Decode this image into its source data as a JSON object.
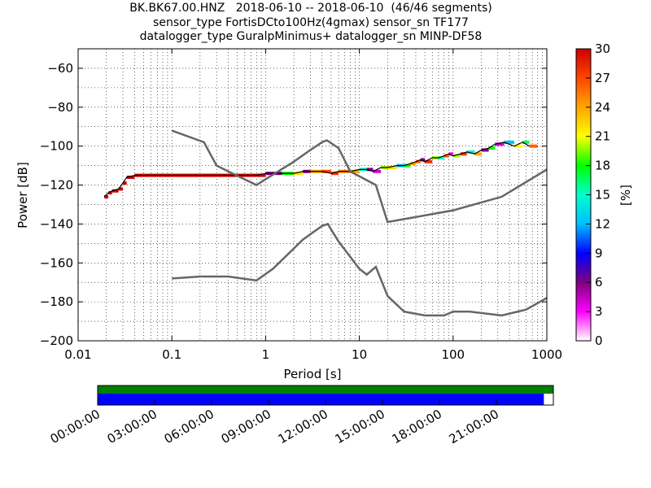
{
  "title_lines": [
    "BK.BK67.00.HNZ   2018-06-10 -- 2018-06-10  (46/46 segments)",
    "sensor_type FortisDCto100Hz(4gmax) sensor_sn TF177",
    "datalogger_type GuralpMinimus+ datalogger_sn MINP-DF58"
  ],
  "chart_data": [
    {
      "type": "heatmap",
      "title": "",
      "xlabel": "Period [s]",
      "ylabel": "Power [dB]",
      "xscale": "log",
      "xlim": [
        0.01,
        1000
      ],
      "ylim": [
        -200,
        -50
      ],
      "x_tick_labels": [
        "0.01",
        "0.1",
        "1",
        "10",
        "100",
        "1000"
      ],
      "y_ticks": [
        -60,
        -80,
        -100,
        -120,
        -140,
        -160,
        -180,
        -200
      ],
      "grid": "dotted",
      "colorbar": {
        "label": "[%]",
        "ticks": [
          0,
          3,
          6,
          9,
          12,
          15,
          18,
          21,
          24,
          27,
          30
        ],
        "range": [
          0,
          30
        ],
        "colors": [
          "#ffffff",
          "#ff00ff",
          "#800080",
          "#0000ff",
          "#00bfff",
          "#00ffcc",
          "#00ff00",
          "#ffff00",
          "#ffa500",
          "#ff4500",
          "#cc0000"
        ]
      },
      "ppsd_band": {
        "description_color": "percent occurrence",
        "points": [
          {
            "x": 0.019,
            "y": -126,
            "pct": 30
          },
          {
            "x": 0.021,
            "y": -124,
            "pct": 30
          },
          {
            "x": 0.023,
            "y": -123,
            "pct": 30
          },
          {
            "x": 0.027,
            "y": -122,
            "pct": 30
          },
          {
            "x": 0.03,
            "y": -119,
            "pct": 30
          },
          {
            "x": 0.033,
            "y": -116,
            "pct": 30
          },
          {
            "x": 0.04,
            "y": -115,
            "pct": 30
          },
          {
            "x": 0.1,
            "y": -115,
            "pct": 30
          },
          {
            "x": 0.3,
            "y": -115,
            "pct": 30
          },
          {
            "x": 0.8,
            "y": -115,
            "pct": 30
          },
          {
            "x": 1.0,
            "y": -114,
            "pct": 6
          },
          {
            "x": 1.5,
            "y": -114,
            "pct": 18
          },
          {
            "x": 2.0,
            "y": -114,
            "pct": 22
          },
          {
            "x": 2.5,
            "y": -113,
            "pct": 6
          },
          {
            "x": 3.0,
            "y": -113,
            "pct": 24
          },
          {
            "x": 4.0,
            "y": -113,
            "pct": 27
          },
          {
            "x": 5.0,
            "y": -114,
            "pct": 28
          },
          {
            "x": 6.0,
            "y": -113,
            "pct": 25
          },
          {
            "x": 8.0,
            "y": -113,
            "pct": 24
          },
          {
            "x": 10.0,
            "y": -112,
            "pct": 15
          },
          {
            "x": 12.0,
            "y": -112,
            "pct": 6
          },
          {
            "x": 14.0,
            "y": -113,
            "pct": 4
          },
          {
            "x": 17.0,
            "y": -111,
            "pct": 20
          },
          {
            "x": 20.0,
            "y": -111,
            "pct": 22
          },
          {
            "x": 25.0,
            "y": -110,
            "pct": 12
          },
          {
            "x": 30.0,
            "y": -110,
            "pct": 18
          },
          {
            "x": 35.0,
            "y": -109,
            "pct": 24
          },
          {
            "x": 40.0,
            "y": -108,
            "pct": 26
          },
          {
            "x": 45.0,
            "y": -107,
            "pct": 6
          },
          {
            "x": 50.0,
            "y": -108,
            "pct": 28
          },
          {
            "x": 60.0,
            "y": -106,
            "pct": 20
          },
          {
            "x": 70.0,
            "y": -106,
            "pct": 15
          },
          {
            "x": 80.0,
            "y": -105,
            "pct": 26
          },
          {
            "x": 90.0,
            "y": -104,
            "pct": 3
          },
          {
            "x": 100.0,
            "y": -105,
            "pct": 20
          },
          {
            "x": 120.0,
            "y": -104,
            "pct": 28
          },
          {
            "x": 140.0,
            "y": -103,
            "pct": 14
          },
          {
            "x": 170.0,
            "y": -104,
            "pct": 24
          },
          {
            "x": 200.0,
            "y": -102,
            "pct": 6
          },
          {
            "x": 240.0,
            "y": -101,
            "pct": 18
          },
          {
            "x": 280.0,
            "y": -99,
            "pct": 4
          },
          {
            "x": 350.0,
            "y": -98,
            "pct": 12
          },
          {
            "x": 450.0,
            "y": -100,
            "pct": 21
          },
          {
            "x": 550.0,
            "y": -98,
            "pct": 17
          },
          {
            "x": 650.0,
            "y": -100,
            "pct": 26
          }
        ]
      },
      "series": [
        {
          "color": "#666666",
          "x": [
            0.1,
            0.22,
            0.3,
            0.4,
            0.8,
            1.0,
            2.0,
            3.0,
            4.0,
            4.5,
            6.0,
            8.0,
            15.0,
            20.0,
            100.0,
            330.0,
            1000.0
          ],
          "y": [
            -92,
            -98,
            -110,
            -113,
            -120,
            -117,
            -108,
            -102,
            -98,
            -97,
            -101,
            -113,
            -120,
            -139,
            -133,
            -126,
            -112
          ]
        },
        {
          "color": "#666666",
          "x": [
            0.1,
            0.2,
            0.3,
            0.4,
            0.8,
            1.2,
            2.5,
            4.0,
            4.6,
            6.0,
            10.0,
            12.0,
            15.0,
            20.0,
            30.0,
            50.0,
            80.0,
            100.0,
            150.0,
            330.0,
            600.0,
            1000.0
          ],
          "y": [
            -168,
            -167,
            -167,
            -167,
            -169,
            -163,
            -148,
            -141,
            -140,
            -149,
            -163,
            -166,
            -162,
            -177,
            -185,
            -187,
            -187,
            -185,
            -185,
            -187,
            -184,
            -178
          ]
        }
      ]
    },
    {
      "type": "timeline",
      "x_tick_labels": [
        "00:00:00",
        "03:00:00",
        "06:00:00",
        "09:00:00",
        "12:00:00",
        "15:00:00",
        "18:00:00",
        "21:00:00"
      ],
      "coverage": [
        {
          "color": "#008000",
          "start_hour": 0,
          "end_hour": 24
        },
        {
          "color": "#0000ff",
          "start_hour": 0,
          "end_hour": 23.5
        }
      ]
    }
  ]
}
